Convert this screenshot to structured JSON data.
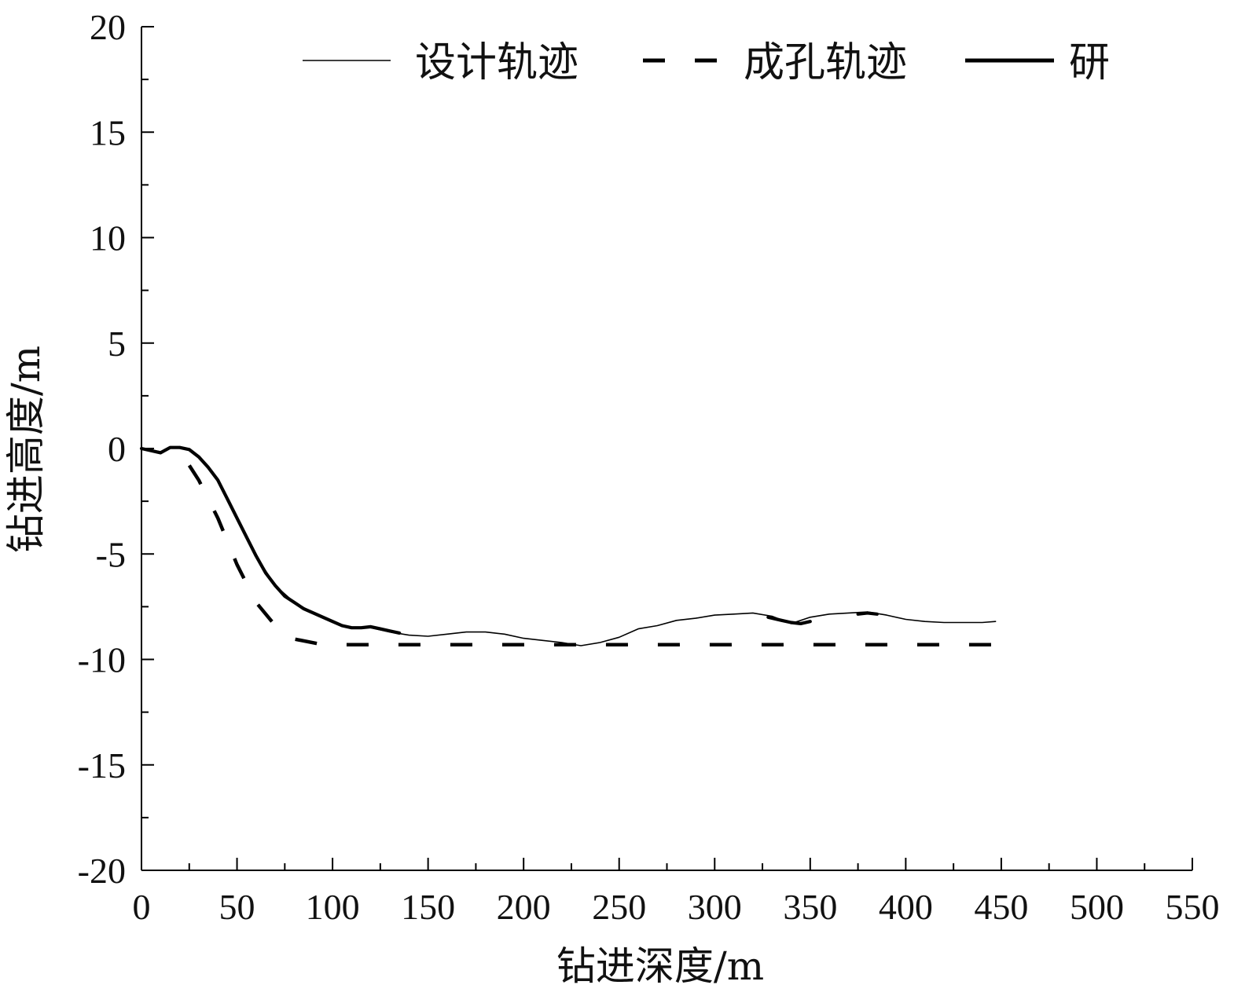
{
  "chart_data": {
    "type": "line",
    "xlabel": "钻进深度/m",
    "ylabel": "钻进高度/m",
    "xlim": [
      0,
      550
    ],
    "ylim": [
      -20,
      20
    ],
    "xticks": [
      "0",
      "50",
      "100",
      "150",
      "200",
      "250",
      "300",
      "350",
      "400",
      "450",
      "500",
      "550"
    ],
    "yticks": [
      "20",
      "15",
      "10",
      "5",
      "0",
      "-5",
      "-10",
      "-15",
      "-20"
    ],
    "grid": false,
    "legend_position": "top",
    "series": [
      {
        "name": "设计轨迹",
        "style": "thin-solid",
        "color": "#000000",
        "x": [
          0,
          10,
          15,
          20,
          25,
          30,
          40,
          50,
          60,
          70,
          80,
          90,
          100,
          110,
          120,
          130,
          140,
          150,
          160,
          170,
          180,
          190,
          200,
          210,
          220,
          230,
          240,
          250,
          260,
          270,
          280,
          290,
          300,
          310,
          320,
          330,
          340,
          350,
          360,
          370,
          380,
          390,
          400,
          410,
          420,
          430,
          440,
          447
        ],
        "y": [
          0,
          -0.15,
          0.05,
          0.05,
          -0.05,
          -0.4,
          -1.5,
          -3.3,
          -5.1,
          -6.5,
          -7.3,
          -7.8,
          -8.2,
          -8.5,
          -8.5,
          -8.7,
          -8.85,
          -8.9,
          -8.8,
          -8.7,
          -8.7,
          -8.8,
          -9.0,
          -9.1,
          -9.2,
          -9.35,
          -9.2,
          -8.95,
          -8.55,
          -8.4,
          -8.15,
          -8.05,
          -7.9,
          -7.85,
          -7.8,
          -7.95,
          -8.3,
          -8.0,
          -7.85,
          -7.8,
          -7.75,
          -7.9,
          -8.1,
          -8.2,
          -8.25,
          -8.25,
          -8.25,
          -8.2
        ]
      },
      {
        "name": "成孔轨迹",
        "style": "dashed",
        "color": "#000000",
        "x": [
          25,
          30,
          40,
          50,
          60,
          70,
          78,
          95,
          100,
          150,
          200,
          250,
          300,
          350,
          400,
          447
        ],
        "y": [
          -0.8,
          -1.5,
          -3.3,
          -5.5,
          -7.3,
          -8.4,
          -9.0,
          -9.3,
          -9.3,
          -9.3,
          -9.3,
          -9.3,
          -9.3,
          -9.3,
          -9.3,
          -9.3
        ]
      },
      {
        "name": "研",
        "style": "thick-solid",
        "color": "#000000",
        "segments": [
          {
            "x": [
              0,
              5,
              10,
              15,
              20,
              25,
              30,
              35,
              40,
              45,
              50,
              55,
              60,
              65,
              70,
              75,
              80,
              85,
              90,
              95,
              100,
              105,
              110,
              115,
              120,
              125,
              130,
              135
            ],
            "y": [
              0,
              -0.1,
              -0.2,
              0.05,
              0.05,
              -0.05,
              -0.4,
              -0.9,
              -1.5,
              -2.4,
              -3.3,
              -4.2,
              -5.1,
              -5.9,
              -6.5,
              -7.0,
              -7.3,
              -7.6,
              -7.8,
              -8.0,
              -8.2,
              -8.4,
              -8.5,
              -8.5,
              -8.45,
              -8.55,
              -8.65,
              -8.75
            ]
          },
          {
            "x": [
              328,
              335,
              340,
              345,
              350
            ],
            "y": [
              -8.0,
              -8.15,
              -8.25,
              -8.3,
              -8.2
            ]
          },
          {
            "x": [
              375,
              380,
              385
            ],
            "y": [
              -7.85,
              -7.8,
              -7.85
            ]
          }
        ]
      }
    ]
  }
}
